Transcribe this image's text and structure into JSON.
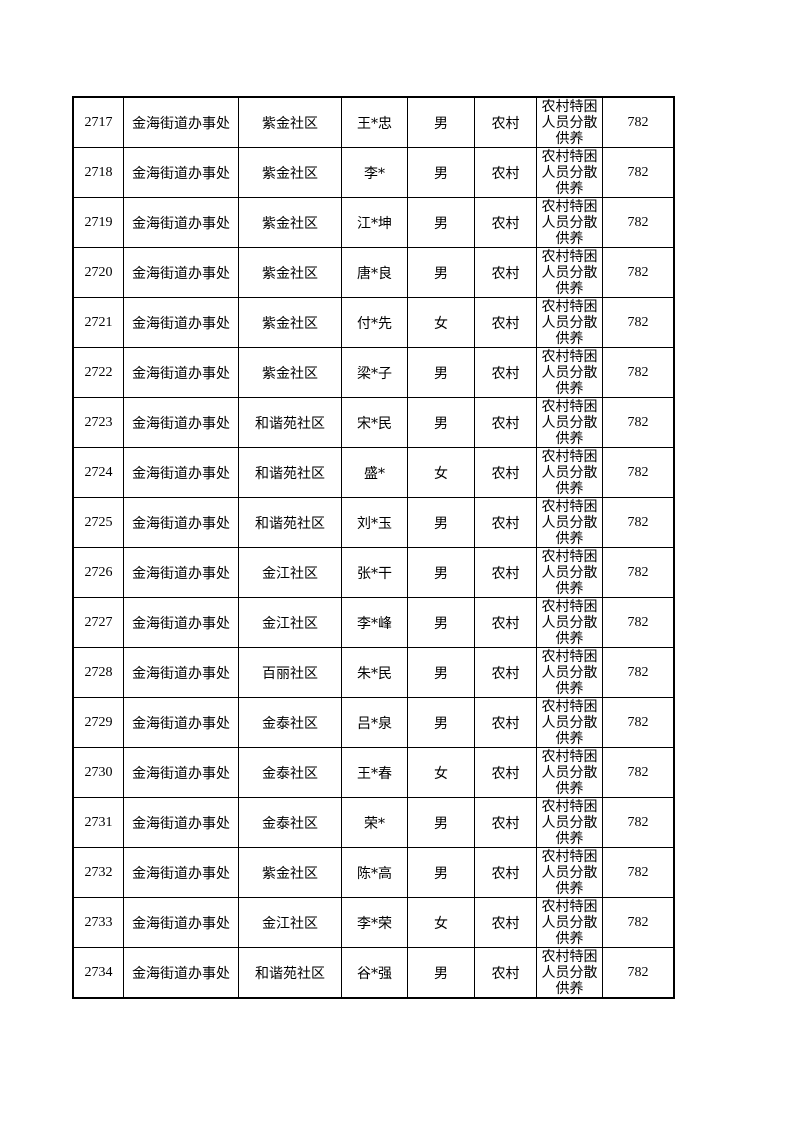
{
  "rows": [
    {
      "no": "2717",
      "office": "金海街道办事处",
      "community": "紫金社区",
      "name": "王*忠",
      "gender": "男",
      "type": "农村",
      "category": "农村特困人员分散供养",
      "amount": "782"
    },
    {
      "no": "2718",
      "office": "金海街道办事处",
      "community": "紫金社区",
      "name": "李*",
      "gender": "男",
      "type": "农村",
      "category": "农村特困人员分散供养",
      "amount": "782"
    },
    {
      "no": "2719",
      "office": "金海街道办事处",
      "community": "紫金社区",
      "name": "江*坤",
      "gender": "男",
      "type": "农村",
      "category": "农村特困人员分散供养",
      "amount": "782"
    },
    {
      "no": "2720",
      "office": "金海街道办事处",
      "community": "紫金社区",
      "name": "唐*良",
      "gender": "男",
      "type": "农村",
      "category": "农村特困人员分散供养",
      "amount": "782"
    },
    {
      "no": "2721",
      "office": "金海街道办事处",
      "community": "紫金社区",
      "name": "付*先",
      "gender": "女",
      "type": "农村",
      "category": "农村特困人员分散供养",
      "amount": "782"
    },
    {
      "no": "2722",
      "office": "金海街道办事处",
      "community": "紫金社区",
      "name": "梁*子",
      "gender": "男",
      "type": "农村",
      "category": "农村特困人员分散供养",
      "amount": "782"
    },
    {
      "no": "2723",
      "office": "金海街道办事处",
      "community": "和谐苑社区",
      "name": "宋*民",
      "gender": "男",
      "type": "农村",
      "category": "农村特困人员分散供养",
      "amount": "782"
    },
    {
      "no": "2724",
      "office": "金海街道办事处",
      "community": "和谐苑社区",
      "name": "盛*",
      "gender": "女",
      "type": "农村",
      "category": "农村特困人员分散供养",
      "amount": "782"
    },
    {
      "no": "2725",
      "office": "金海街道办事处",
      "community": "和谐苑社区",
      "name": "刘*玉",
      "gender": "男",
      "type": "农村",
      "category": "农村特困人员分散供养",
      "amount": "782"
    },
    {
      "no": "2726",
      "office": "金海街道办事处",
      "community": "金江社区",
      "name": "张*干",
      "gender": "男",
      "type": "农村",
      "category": "农村特困人员分散供养",
      "amount": "782"
    },
    {
      "no": "2727",
      "office": "金海街道办事处",
      "community": "金江社区",
      "name": "李*峰",
      "gender": "男",
      "type": "农村",
      "category": "农村特困人员分散供养",
      "amount": "782"
    },
    {
      "no": "2728",
      "office": "金海街道办事处",
      "community": "百丽社区",
      "name": "朱*民",
      "gender": "男",
      "type": "农村",
      "category": "农村特困人员分散供养",
      "amount": "782"
    },
    {
      "no": "2729",
      "office": "金海街道办事处",
      "community": "金泰社区",
      "name": "吕*泉",
      "gender": "男",
      "type": "农村",
      "category": "农村特困人员分散供养",
      "amount": "782"
    },
    {
      "no": "2730",
      "office": "金海街道办事处",
      "community": "金泰社区",
      "name": "王*春",
      "gender": "女",
      "type": "农村",
      "category": "农村特困人员分散供养",
      "amount": "782"
    },
    {
      "no": "2731",
      "office": "金海街道办事处",
      "community": "金泰社区",
      "name": "荣*",
      "gender": "男",
      "type": "农村",
      "category": "农村特困人员分散供养",
      "amount": "782"
    },
    {
      "no": "2732",
      "office": "金海街道办事处",
      "community": "紫金社区",
      "name": "陈*高",
      "gender": "男",
      "type": "农村",
      "category": "农村特困人员分散供养",
      "amount": "782"
    },
    {
      "no": "2733",
      "office": "金海街道办事处",
      "community": "金江社区",
      "name": "李*荣",
      "gender": "女",
      "type": "农村",
      "category": "农村特困人员分散供养",
      "amount": "782"
    },
    {
      "no": "2734",
      "office": "金海街道办事处",
      "community": "和谐苑社区",
      "name": "谷*强",
      "gender": "男",
      "type": "农村",
      "category": "农村特困人员分散供养",
      "amount": "782"
    }
  ]
}
